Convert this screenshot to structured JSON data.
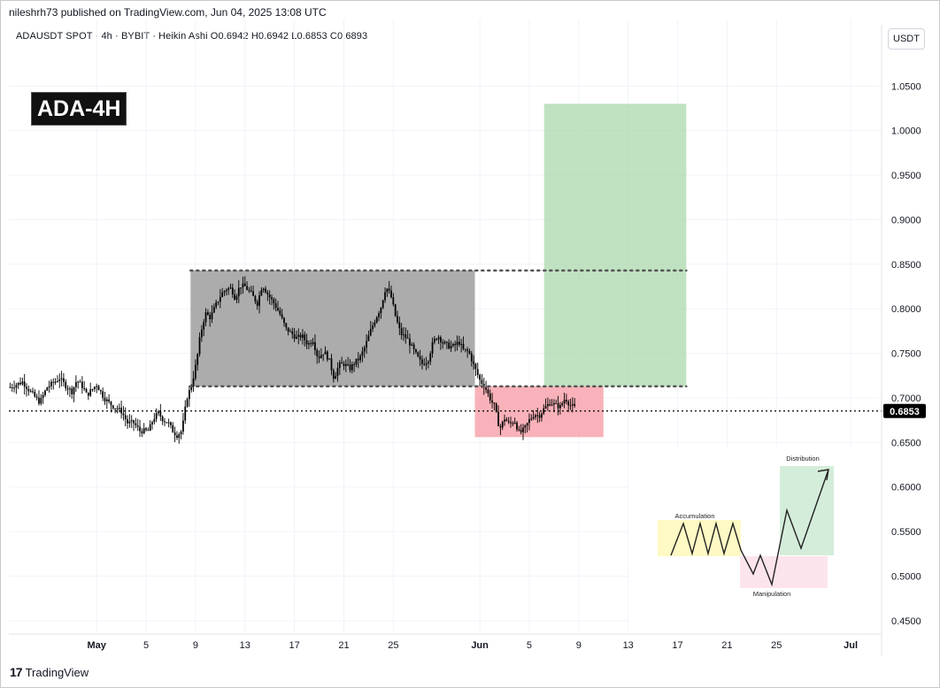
{
  "header": {
    "published": "nileshrh73 published on TradingView.com, Jun 04, 2025 13:08 UTC",
    "symbol_line": "ADAUSDT SPOT · 4h · BYBIT · Heikin Ashi  O0.6942  H0.6942  L0.6853  C0.6893"
  },
  "currency_button": "USDT",
  "chart_label": "ADA-4H",
  "footer": {
    "logo_mark": "17",
    "logo_text": "TradingView"
  },
  "colors": {
    "candle": "#000000",
    "range_box": "#9e9e9e",
    "target_box": "#a5d6a7",
    "stop_box": "#f8a4ad",
    "accumulation": "#fff9c4",
    "manipulation": "#fce4ec",
    "distribution": "#d4edda"
  },
  "chart_data": {
    "type": "candlestick",
    "title": "",
    "xlabel": "",
    "ylabel": "",
    "ylim": [
      0.435,
      1.085
    ],
    "y_ticks": [
      "1.0500",
      "1.0000",
      "0.9500",
      "0.9000",
      "0.8500",
      "0.8000",
      "0.7500",
      "0.7000",
      "0.6500",
      "0.6000",
      "0.5500",
      "0.5000",
      "0.4500"
    ],
    "x_ticks": [
      {
        "label": "May",
        "day": 0
      },
      {
        "label": "5",
        "day": 4
      },
      {
        "label": "9",
        "day": 8
      },
      {
        "label": "13",
        "day": 12
      },
      {
        "label": "17",
        "day": 16
      },
      {
        "label": "21",
        "day": 20
      },
      {
        "label": "25",
        "day": 24
      },
      {
        "label": "Jun",
        "day": 31
      },
      {
        "label": "5",
        "day": 35
      },
      {
        "label": "9",
        "day": 39
      },
      {
        "label": "13",
        "day": 43
      },
      {
        "label": "17",
        "day": 47
      },
      {
        "label": "21",
        "day": 51
      },
      {
        "label": "25",
        "day": 55
      },
      {
        "label": "Jul",
        "day": 61
      }
    ],
    "x_range_days": [
      -7.1,
      63.5
    ],
    "last_price": "0.6853",
    "last_price_value": 0.6853,
    "price_path": [
      [
        -7.0,
        0.712
      ],
      [
        -6.0,
        0.718
      ],
      [
        -5.3,
        0.706
      ],
      [
        -4.6,
        0.695
      ],
      [
        -4.0,
        0.712
      ],
      [
        -3.0,
        0.722
      ],
      [
        -2.4,
        0.712
      ],
      [
        -2.0,
        0.707
      ],
      [
        -1.6,
        0.72
      ],
      [
        -1.1,
        0.712
      ],
      [
        -0.8,
        0.703
      ],
      [
        0.0,
        0.715
      ],
      [
        0.6,
        0.7
      ],
      [
        1.2,
        0.692
      ],
      [
        2.0,
        0.685
      ],
      [
        2.5,
        0.672
      ],
      [
        3.0,
        0.672
      ],
      [
        3.5,
        0.663
      ],
      [
        4.2,
        0.663
      ],
      [
        4.6,
        0.677
      ],
      [
        5.0,
        0.683
      ],
      [
        5.4,
        0.675
      ],
      [
        5.8,
        0.672
      ],
      [
        6.2,
        0.662
      ],
      [
        6.5,
        0.658
      ],
      [
        6.9,
        0.663
      ],
      [
        7.3,
        0.7
      ],
      [
        7.7,
        0.715
      ],
      [
        8.1,
        0.742
      ],
      [
        8.4,
        0.772
      ],
      [
        8.8,
        0.795
      ],
      [
        9.2,
        0.79
      ],
      [
        9.6,
        0.803
      ],
      [
        10.1,
        0.817
      ],
      [
        10.5,
        0.822
      ],
      [
        10.9,
        0.823
      ],
      [
        11.2,
        0.812
      ],
      [
        11.6,
        0.826
      ],
      [
        12.0,
        0.825
      ],
      [
        12.5,
        0.817
      ],
      [
        13.0,
        0.806
      ],
      [
        13.4,
        0.827
      ],
      [
        13.9,
        0.815
      ],
      [
        14.4,
        0.805
      ],
      [
        14.8,
        0.795
      ],
      [
        15.3,
        0.778
      ],
      [
        15.7,
        0.773
      ],
      [
        16.2,
        0.767
      ],
      [
        16.6,
        0.77
      ],
      [
        17.1,
        0.76
      ],
      [
        17.5,
        0.765
      ],
      [
        17.9,
        0.745
      ],
      [
        18.4,
        0.752
      ],
      [
        18.8,
        0.743
      ],
      [
        19.2,
        0.722
      ],
      [
        19.6,
        0.737
      ],
      [
        20.0,
        0.738
      ],
      [
        20.5,
        0.733
      ],
      [
        20.9,
        0.74
      ],
      [
        21.3,
        0.745
      ],
      [
        21.7,
        0.757
      ],
      [
        22.2,
        0.777
      ],
      [
        22.6,
        0.79
      ],
      [
        23.0,
        0.802
      ],
      [
        23.4,
        0.825
      ],
      [
        23.8,
        0.815
      ],
      [
        24.2,
        0.79
      ],
      [
        24.6,
        0.772
      ],
      [
        25.1,
        0.767
      ],
      [
        25.5,
        0.757
      ],
      [
        25.9,
        0.747
      ],
      [
        26.3,
        0.738
      ],
      [
        26.8,
        0.742
      ],
      [
        27.2,
        0.762
      ],
      [
        27.6,
        0.77
      ],
      [
        28.0,
        0.762
      ],
      [
        28.5,
        0.758
      ],
      [
        28.9,
        0.758
      ],
      [
        29.3,
        0.763
      ],
      [
        29.7,
        0.753
      ],
      [
        30.1,
        0.752
      ],
      [
        30.5,
        0.737
      ],
      [
        31.0,
        0.72
      ],
      [
        31.4,
        0.713
      ],
      [
        31.8,
        0.7
      ],
      [
        32.2,
        0.69
      ],
      [
        32.6,
        0.665
      ],
      [
        33.0,
        0.677
      ],
      [
        33.4,
        0.67
      ],
      [
        33.8,
        0.675
      ],
      [
        34.2,
        0.66
      ],
      [
        34.6,
        0.665
      ],
      [
        35.0,
        0.675
      ],
      [
        35.4,
        0.682
      ],
      [
        35.8,
        0.68
      ],
      [
        36.2,
        0.688
      ],
      [
        36.7,
        0.695
      ],
      [
        37.1,
        0.692
      ],
      [
        37.5,
        0.69
      ],
      [
        37.9,
        0.7
      ],
      [
        38.3,
        0.692
      ],
      [
        38.7,
        0.689
      ]
    ],
    "annotations": {
      "range_box": {
        "day_start": 7.6,
        "day_end": 30.6,
        "price_top": 0.843,
        "price_bottom": 0.713
      },
      "range_top_line": {
        "day_start": 7.6,
        "day_end": 47.7,
        "price": 0.843
      },
      "range_bottom_line": {
        "day_start": 7.6,
        "day_end": 47.7,
        "price": 0.713
      },
      "stop_box": {
        "day_start": 30.6,
        "day_end": 41.0,
        "price_top": 0.713,
        "price_bottom": 0.656
      },
      "target_box": {
        "day_start": 36.2,
        "day_end": 47.7,
        "price_top": 1.03,
        "price_bottom": 0.713
      }
    },
    "inset": {
      "accumulation_label": "Accumulation",
      "manipulation_label": "Manipulation",
      "distribution_label": "Distribution"
    }
  }
}
